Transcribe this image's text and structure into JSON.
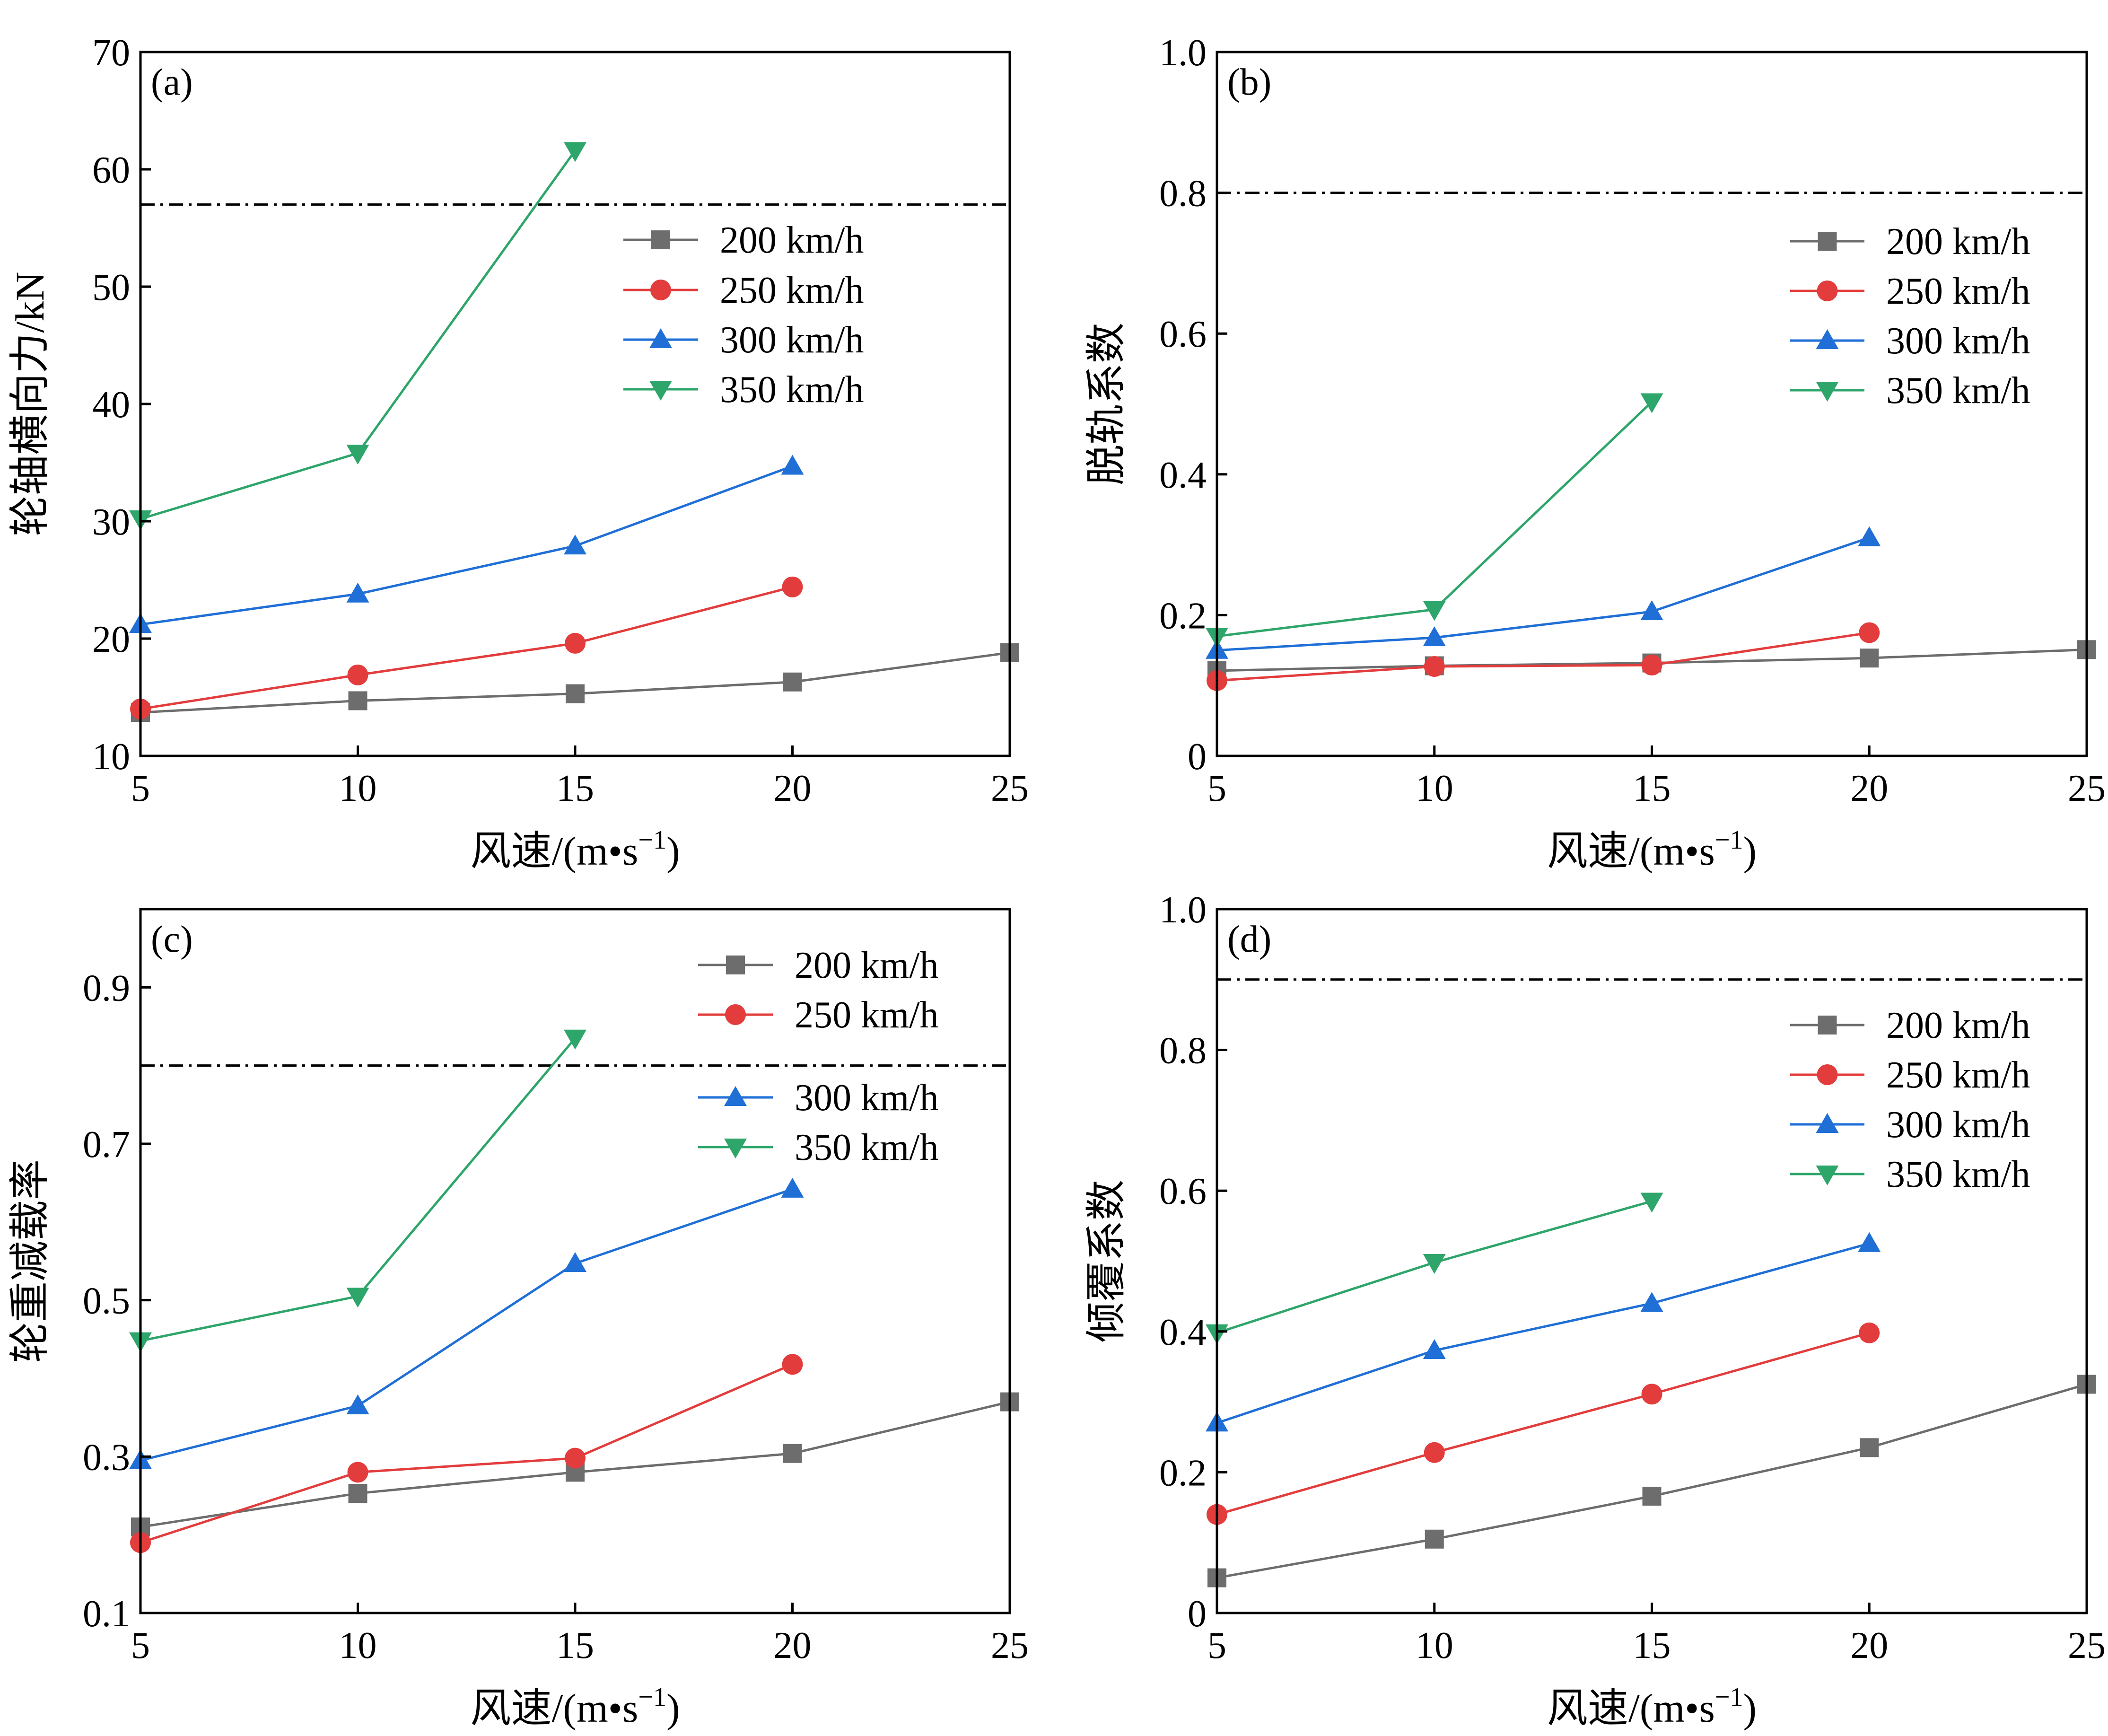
{
  "chart_data": [
    {
      "type": "line",
      "panel_label": "(a)",
      "xlabel": "风速/(m•s",
      "xlabel_sup": "−1",
      "xlabel_close": ")",
      "ylabel": "轮轴横向力/kN",
      "xlim": [
        5,
        25
      ],
      "ylim": [
        10,
        70
      ],
      "xticks": [
        5,
        10,
        15,
        20,
        25
      ],
      "xtick_labels": [
        "5",
        "10",
        "15",
        "20",
        "25"
      ],
      "yticks": [
        10,
        20,
        30,
        40,
        50,
        60,
        70
      ],
      "ytick_labels": [
        "10",
        "20",
        "30",
        "40",
        "50",
        "60",
        "70"
      ],
      "threshold": 57,
      "legend_position": "upper-right",
      "series": [
        {
          "name": "200 km/h",
          "x": [
            5,
            10,
            15,
            20,
            25
          ],
          "values": [
            13.7,
            14.7,
            15.3,
            16.3,
            18.8
          ]
        },
        {
          "name": "250 km/h",
          "x": [
            5,
            10,
            15,
            20
          ],
          "values": [
            14.0,
            16.9,
            19.6,
            24.4
          ]
        },
        {
          "name": "300 km/h",
          "x": [
            5,
            10,
            15,
            20
          ],
          "values": [
            21.2,
            23.8,
            27.9,
            34.7
          ]
        },
        {
          "name": "350 km/h",
          "x": [
            5,
            10,
            15
          ],
          "values": [
            30.2,
            35.8,
            61.6
          ]
        }
      ]
    },
    {
      "type": "line",
      "panel_label": "(b)",
      "xlabel": "风速/(m•s",
      "xlabel_sup": "−1",
      "xlabel_close": ")",
      "ylabel": "脱轨系数",
      "xlim": [
        5,
        25
      ],
      "ylim": [
        0,
        1.0
      ],
      "xticks": [
        5,
        10,
        15,
        20,
        25
      ],
      "xtick_labels": [
        "5",
        "10",
        "15",
        "20",
        "25"
      ],
      "yticks": [
        0,
        0.2,
        0.4,
        0.6,
        0.8,
        1.0
      ],
      "ytick_labels": [
        "0",
        "0.2",
        "0.4",
        "0.6",
        "0.8",
        "1.0"
      ],
      "threshold": 0.8,
      "legend_position": "upper-right",
      "series": [
        {
          "name": "200 km/h",
          "x": [
            5,
            10,
            15,
            20,
            25
          ],
          "values": [
            0.121,
            0.128,
            0.132,
            0.139,
            0.151
          ]
        },
        {
          "name": "250 km/h",
          "x": [
            5,
            10,
            15,
            20
          ],
          "values": [
            0.107,
            0.127,
            0.129,
            0.175
          ]
        },
        {
          "name": "300 km/h",
          "x": [
            5,
            10,
            15,
            20
          ],
          "values": [
            0.15,
            0.168,
            0.205,
            0.31
          ]
        },
        {
          "name": "350 km/h",
          "x": [
            5,
            10,
            15
          ],
          "values": [
            0.17,
            0.208,
            0.503
          ]
        }
      ]
    },
    {
      "type": "line",
      "panel_label": "(c)",
      "xlabel": "风速/(m•s",
      "xlabel_sup": "−1",
      "xlabel_close": ")",
      "ylabel": "轮重减载率",
      "xlim": [
        5,
        25
      ],
      "ylim": [
        0.1,
        1.0
      ],
      "xticks": [
        5,
        10,
        15,
        20,
        25
      ],
      "xtick_labels": [
        "5",
        "10",
        "15",
        "20",
        "25"
      ],
      "yticks": [
        0.1,
        0.3,
        0.5,
        0.7,
        0.9
      ],
      "ytick_labels": [
        "0.1",
        "0.3",
        "0.5",
        "0.7",
        "0.9"
      ],
      "threshold": 0.8,
      "legend_position": "upper-right",
      "series": [
        {
          "name": "200 km/h",
          "x": [
            5,
            10,
            15,
            20,
            25
          ],
          "values": [
            0.21,
            0.253,
            0.28,
            0.304,
            0.37
          ]
        },
        {
          "name": "250 km/h",
          "x": [
            5,
            10,
            15,
            20
          ],
          "values": [
            0.19,
            0.28,
            0.298,
            0.418
          ]
        },
        {
          "name": "300 km/h",
          "x": [
            5,
            10,
            15,
            20
          ],
          "values": [
            0.295,
            0.365,
            0.547,
            0.642
          ]
        },
        {
          "name": "350 km/h",
          "x": [
            5,
            10,
            15
          ],
          "values": [
            0.448,
            0.505,
            0.835
          ]
        }
      ]
    },
    {
      "type": "line",
      "panel_label": "(d)",
      "xlabel": "风速/(m•s",
      "xlabel_sup": "−1",
      "xlabel_close": ")",
      "ylabel": "倾覆系数",
      "xlim": [
        5,
        25
      ],
      "ylim": [
        0,
        1.0
      ],
      "xticks": [
        5,
        10,
        15,
        20,
        25
      ],
      "xtick_labels": [
        "5",
        "10",
        "15",
        "20",
        "25"
      ],
      "yticks": [
        0,
        0.2,
        0.4,
        0.6,
        0.8,
        1.0
      ],
      "ytick_labels": [
        "0",
        "0.2",
        "0.4",
        "0.6",
        "0.8",
        "1.0"
      ],
      "threshold": 0.9,
      "legend_position": "upper-right",
      "series": [
        {
          "name": "200 km/h",
          "x": [
            5,
            10,
            15,
            20,
            25
          ],
          "values": [
            0.05,
            0.105,
            0.166,
            0.235,
            0.325
          ]
        },
        {
          "name": "250 km/h",
          "x": [
            5,
            10,
            15,
            20
          ],
          "values": [
            0.14,
            0.228,
            0.311,
            0.398
          ]
        },
        {
          "name": "300 km/h",
          "x": [
            5,
            10,
            15,
            20
          ],
          "values": [
            0.27,
            0.373,
            0.44,
            0.525
          ]
        },
        {
          "name": "350 km/h",
          "x": [
            5,
            10,
            15
          ],
          "values": [
            0.398,
            0.498,
            0.585
          ]
        }
      ]
    }
  ],
  "series_styles": [
    {
      "color": "#6d6d6d",
      "marker": "square"
    },
    {
      "color": "#e33c3c",
      "marker": "circle"
    },
    {
      "color": "#1f6fd6",
      "marker": "triangle-up"
    },
    {
      "color": "#2ea56a",
      "marker": "triangle-down"
    }
  ]
}
